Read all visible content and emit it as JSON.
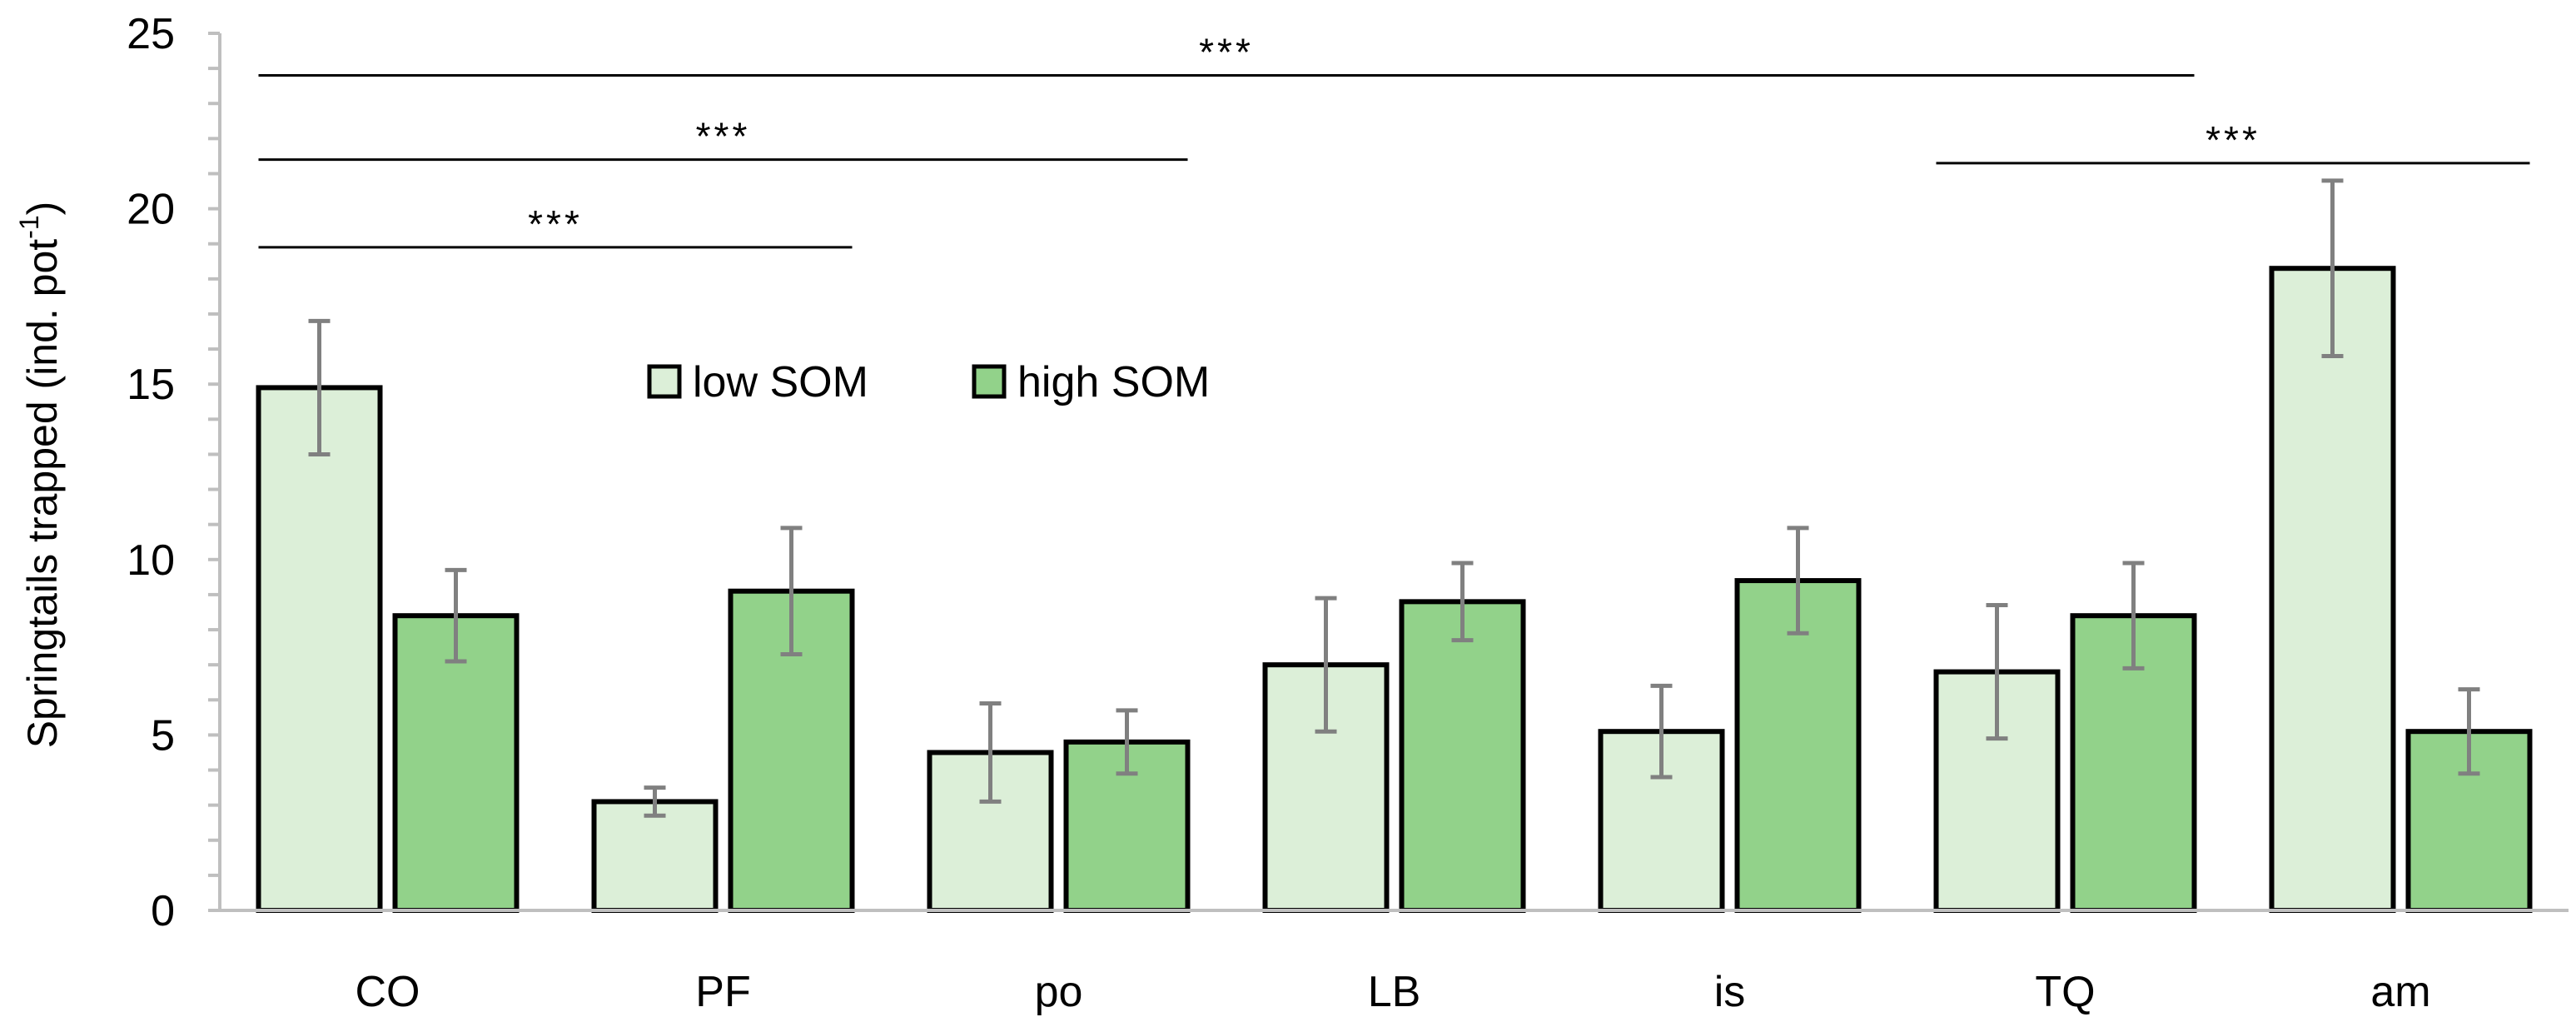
{
  "chart_data": {
    "type": "bar",
    "ylabel": "Springtails trapped (ind. pot",
    "ylabel_superscript": "-1",
    "ylabel_close": ")",
    "ylim": [
      0,
      25
    ],
    "yticks": [
      0,
      5,
      10,
      15,
      20,
      25
    ],
    "categories": [
      "CO",
      "PF",
      "po",
      "LB",
      "is",
      "TQ",
      "am"
    ],
    "series": [
      {
        "name": "low SOM",
        "color": "#dcefd8",
        "values": [
          14.9,
          3.1,
          4.5,
          7.0,
          5.1,
          6.8,
          18.3
        ],
        "errors": [
          1.9,
          0.4,
          1.4,
          1.9,
          1.3,
          1.9,
          2.5
        ]
      },
      {
        "name": "high SOM",
        "color": "#92d28a",
        "values": [
          8.4,
          9.1,
          4.8,
          8.8,
          9.4,
          8.4,
          5.1
        ],
        "errors": [
          1.3,
          1.8,
          0.9,
          1.1,
          1.5,
          1.5,
          1.2
        ]
      }
    ],
    "significance": [
      {
        "label": "***",
        "from": "CO",
        "to": "PF",
        "y": 18.9
      },
      {
        "label": "***",
        "from": "CO",
        "to": "po",
        "y": 21.4
      },
      {
        "label": "***",
        "from": "CO",
        "to": "TQ",
        "y": 23.8
      },
      {
        "label": "***",
        "from": "TQ",
        "to": "am",
        "y": 21.3
      }
    ],
    "legend": {
      "position": "upper-center",
      "entries": [
        "low SOM",
        "high SOM"
      ]
    }
  }
}
